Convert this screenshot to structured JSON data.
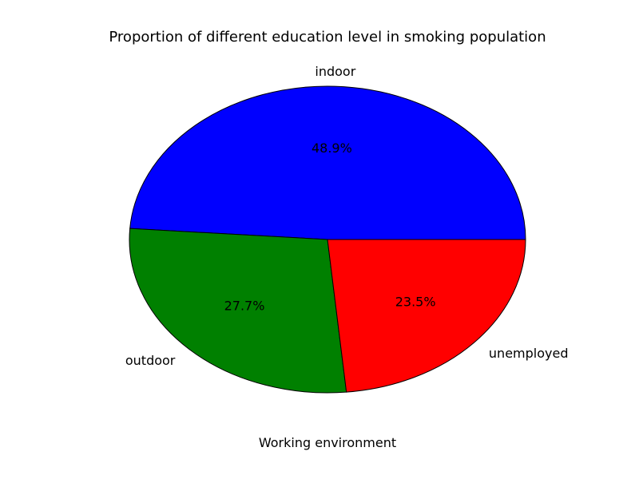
{
  "chart_data": {
    "type": "pie",
    "title": "Proportion of different education level in smoking population",
    "xlabel": "Working environment",
    "slices": [
      {
        "label": "indoor",
        "value": 48.9,
        "pct_label": "48.9%",
        "color": "#0000ff"
      },
      {
        "label": "outdoor",
        "value": 27.7,
        "pct_label": "27.7%",
        "color": "#008000"
      },
      {
        "label": "unemployed",
        "value": 23.5,
        "pct_label": "23.5%",
        "color": "#ff0000"
      }
    ],
    "start_angle_deg": 0,
    "direction": "counterclockwise",
    "legend": "none"
  }
}
